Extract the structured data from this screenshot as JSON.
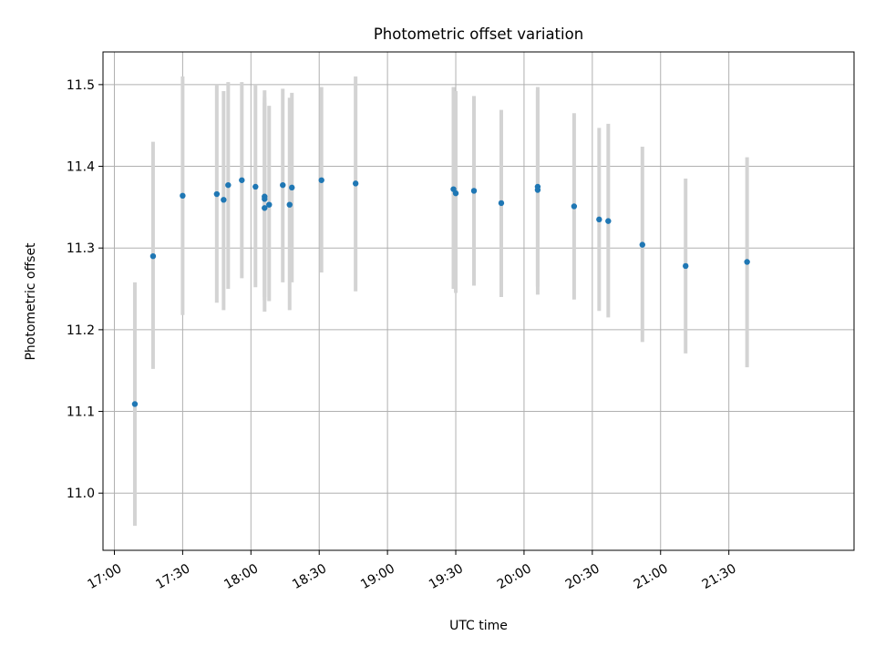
{
  "chart_data": {
    "type": "scatter",
    "title": "Photometric offset variation",
    "xlabel": "UTC time",
    "ylabel": "Photometric offset",
    "grid": true,
    "x_tick_labels": [
      "17:00",
      "17:30",
      "18:00",
      "18:30",
      "19:00",
      "19:30",
      "20:00",
      "20:30",
      "21:00",
      "21:30"
    ],
    "y_tick_labels": [
      "11.0",
      "11.1",
      "11.2",
      "11.3",
      "11.4",
      "11.5"
    ],
    "xlim": [
      "16:55",
      "22:25"
    ],
    "ylim": [
      10.93,
      11.54
    ],
    "errorbar_color": "#d3d3d3",
    "marker_color": "#1f77b4",
    "points": [
      {
        "x": "17:09",
        "y": 11.109,
        "ylo": 10.96,
        "yhi": 11.258
      },
      {
        "x": "17:17",
        "y": 11.29,
        "ylo": 11.152,
        "yhi": 11.43
      },
      {
        "x": "17:30",
        "y": 11.364,
        "ylo": 11.218,
        "yhi": 11.51
      },
      {
        "x": "17:45",
        "y": 11.366,
        "ylo": 11.233,
        "yhi": 11.5
      },
      {
        "x": "17:48",
        "y": 11.359,
        "ylo": 11.224,
        "yhi": 11.492
      },
      {
        "x": "17:50",
        "y": 11.377,
        "ylo": 11.25,
        "yhi": 11.503
      },
      {
        "x": "17:56",
        "y": 11.383,
        "ylo": 11.263,
        "yhi": 11.503
      },
      {
        "x": "18:02",
        "y": 11.375,
        "ylo": 11.252,
        "yhi": 11.5
      },
      {
        "x": "18:06",
        "y": 11.363,
        "ylo": 11.236,
        "yhi": 11.493
      },
      {
        "x": "18:06",
        "y": 11.36,
        "ylo": 11.24,
        "yhi": 11.485
      },
      {
        "x": "18:06",
        "y": 11.349,
        "ylo": 11.222,
        "yhi": 11.478
      },
      {
        "x": "18:08",
        "y": 11.353,
        "ylo": 11.235,
        "yhi": 11.474
      },
      {
        "x": "18:14",
        "y": 11.377,
        "ylo": 11.258,
        "yhi": 11.495
      },
      {
        "x": "18:17",
        "y": 11.353,
        "ylo": 11.224,
        "yhi": 11.484
      },
      {
        "x": "18:18",
        "y": 11.374,
        "ylo": 11.258,
        "yhi": 11.49
      },
      {
        "x": "18:31",
        "y": 11.383,
        "ylo": 11.27,
        "yhi": 11.497
      },
      {
        "x": "18:46",
        "y": 11.379,
        "ylo": 11.247,
        "yhi": 11.51
      },
      {
        "x": "19:29",
        "y": 11.372,
        "ylo": 11.25,
        "yhi": 11.497
      },
      {
        "x": "19:30",
        "y": 11.367,
        "ylo": 11.245,
        "yhi": 11.492
      },
      {
        "x": "19:38",
        "y": 11.37,
        "ylo": 11.254,
        "yhi": 11.486
      },
      {
        "x": "19:50",
        "y": 11.355,
        "ylo": 11.24,
        "yhi": 11.469
      },
      {
        "x": "20:06",
        "y": 11.371,
        "ylo": 11.243,
        "yhi": 11.497
      },
      {
        "x": "20:06",
        "y": 11.375,
        "ylo": 11.253,
        "yhi": 11.493
      },
      {
        "x": "20:22",
        "y": 11.351,
        "ylo": 11.237,
        "yhi": 11.465
      },
      {
        "x": "20:33",
        "y": 11.335,
        "ylo": 11.223,
        "yhi": 11.447
      },
      {
        "x": "20:37",
        "y": 11.333,
        "ylo": 11.215,
        "yhi": 11.452
      },
      {
        "x": "20:52",
        "y": 11.304,
        "ylo": 11.185,
        "yhi": 11.424
      },
      {
        "x": "21:11",
        "y": 11.278,
        "ylo": 11.171,
        "yhi": 11.385
      },
      {
        "x": "21:38",
        "y": 11.283,
        "ylo": 11.154,
        "yhi": 11.411
      }
    ]
  }
}
